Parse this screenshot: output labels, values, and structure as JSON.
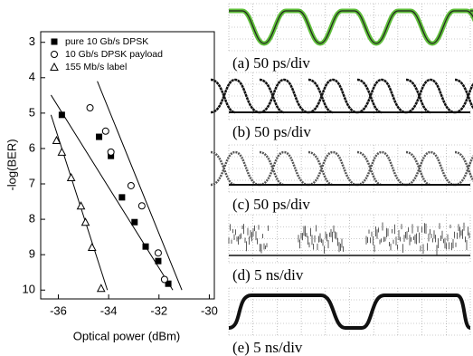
{
  "chart_data": {
    "type": "scatter",
    "x_label": "Optical power (dBm)",
    "y_label": "-log(BER)",
    "xlim": [
      -36.7,
      -29.8
    ],
    "xticks": [
      -36,
      -34,
      -32,
      -30
    ],
    "ylim": [
      2.7,
      10.25
    ],
    "yticks": [
      3,
      4,
      5,
      6,
      7,
      8,
      9,
      10
    ],
    "y_inverted": true,
    "legend": "upper left",
    "series": [
      {
        "name": "pure 10 Gb/s DPSK",
        "marker": "square",
        "color": "#000000",
        "x": [
          -35.86,
          -34.38,
          -33.91,
          -33.47,
          -32.97,
          -32.53,
          -32.03,
          -31.63
        ],
        "values": [
          5.05,
          5.67,
          6.21,
          7.38,
          8.08,
          8.77,
          9.18,
          9.82
        ],
        "fit": {
          "x": [
            -36.29,
            -31.45
          ],
          "values": [
            4.49,
            10.0
          ]
        }
      },
      {
        "name": "10 Gb/s DPSK payload",
        "marker": "circle",
        "color": "#000000",
        "x": [
          -34.74,
          -34.12,
          -33.91,
          -33.11,
          -32.68,
          -32.03,
          -31.78
        ],
        "values": [
          4.85,
          5.51,
          6.1,
          7.05,
          7.62,
          8.95,
          9.7
        ],
        "fit": {
          "x": [
            -34.45,
            -31.09
          ],
          "values": [
            4.1,
            10.0
          ]
        }
      },
      {
        "name": "155 Mb/s label",
        "marker": "triangle",
        "color": "#000000",
        "x": [
          -36.07,
          -35.86,
          -35.49,
          -35.1,
          -34.92,
          -34.66,
          -34.3
        ],
        "values": [
          5.77,
          6.1,
          6.82,
          7.62,
          8.08,
          8.79,
          9.95
        ],
        "fit": {
          "x": [
            -36.29,
            -34.05
          ],
          "values": [
            5.05,
            10.0
          ]
        }
      }
    ]
  },
  "eye_panels": [
    {
      "label": "(a)  50 ps/div"
    },
    {
      "label": "(b)  50 ps/div"
    },
    {
      "label": "(c)  50 ps/div"
    },
    {
      "label": "(d)  5 ns/div"
    },
    {
      "label": "(e)  5 ns/div"
    }
  ]
}
